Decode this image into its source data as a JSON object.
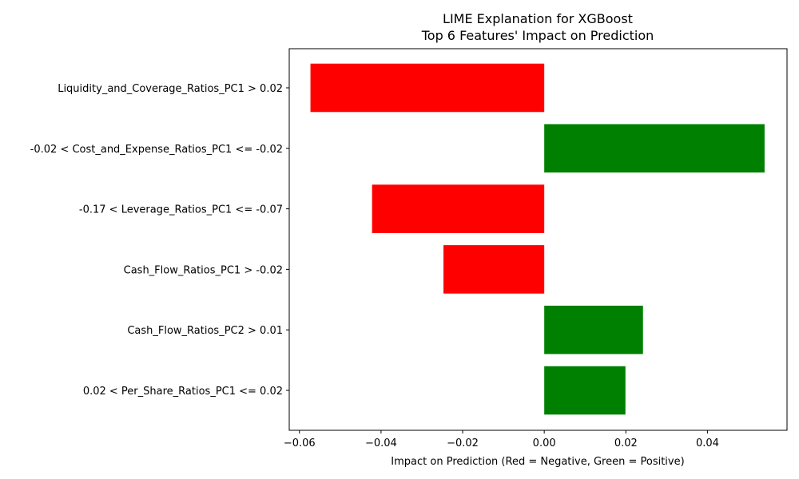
{
  "chart_data": {
    "type": "bar",
    "orientation": "horizontal",
    "title": "LIME Explanation for XGBoost",
    "subtitle": "Top 6 Features' Impact on Prediction",
    "xlabel": "Impact on Prediction (Red = Negative, Green = Positive)",
    "ylabel": "",
    "xlim": [
      -0.0625,
      0.0595
    ],
    "xticks": [
      -0.06,
      -0.04,
      -0.02,
      0.0,
      0.02,
      0.04
    ],
    "xtick_labels": [
      "−0.06",
      "−0.04",
      "−0.02",
      "0.00",
      "0.02",
      "0.04"
    ],
    "grid": false,
    "categories": [
      "Liquidity_and_Coverage_Ratios_PC1 > 0.02",
      "-0.02 < Cost_and_Expense_Ratios_PC1 <= -0.02",
      "-0.17 < Leverage_Ratios_PC1 <= -0.07",
      "Cash_Flow_Ratios_PC1 > -0.02",
      "Cash_Flow_Ratios_PC2 > 0.01",
      "0.02 < Per_Share_Ratios_PC1 <= 0.02"
    ],
    "values": [
      -0.0573,
      0.054,
      -0.0422,
      -0.0247,
      0.0242,
      0.0199
    ],
    "colors": {
      "negative": "#ff0000",
      "positive": "#008000"
    }
  }
}
